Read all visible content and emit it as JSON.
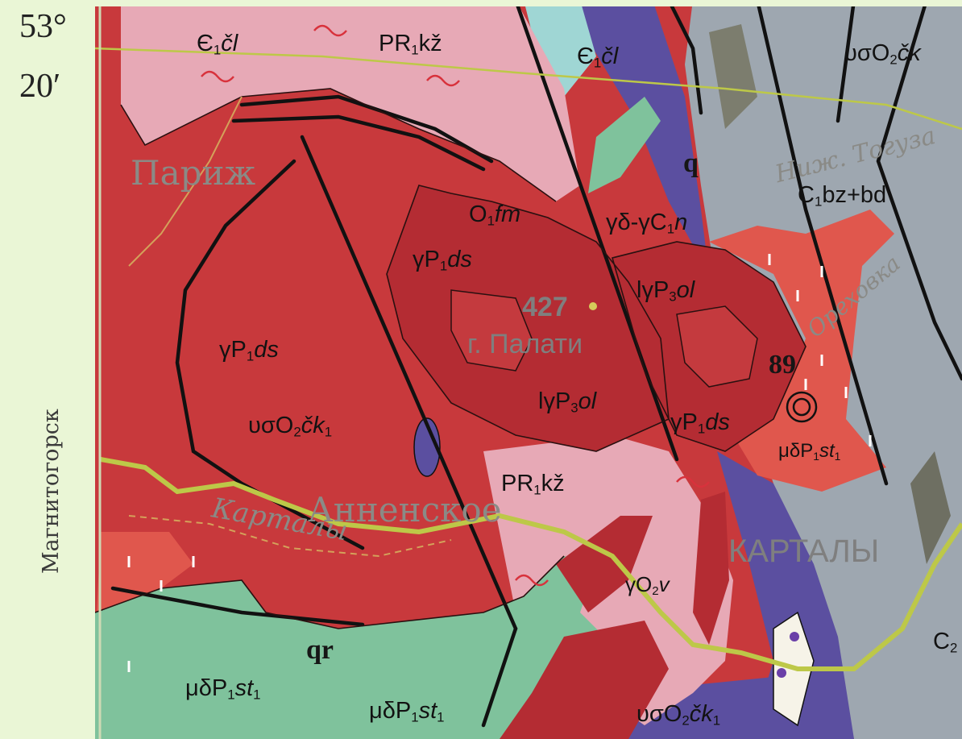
{
  "margin": {
    "lat_deg": "53°",
    "lat_min": "20′",
    "city_direction": "Магнитогорск"
  },
  "places": {
    "parizh": "Париж",
    "annenskoe": "Анненское",
    "kartaly_river": "Карталы",
    "kartaly_town": "КАРТАЛЫ",
    "nizh_toguzak": "Ниж. Тогуза",
    "orekhovka": "Ореховка",
    "mountain_elev": "427",
    "mountain_name": "г. Палати"
  },
  "labels": {
    "c1cl_a": {
      "main": "Є",
      "sub1": "1",
      "rest": "čl"
    },
    "c1cl_b": {
      "main": "Є",
      "sub1": "1",
      "rest": "čl"
    },
    "pr1kz_top": {
      "main": "PR",
      "sub1": "1",
      "rest": "kž"
    },
    "pr1kz_mid": {
      "main": "PR",
      "sub1": "1",
      "rest": "kž"
    },
    "vso2ck_top": {
      "main": "υσO",
      "sub1": "2",
      "rest": "čk"
    },
    "vso2ck1_left": {
      "main": "υσO",
      "sub1": "2",
      "rest": "čk",
      "sub2": "1"
    },
    "vso2ck1_bottom": {
      "main": "υσO",
      "sub1": "2",
      "rest": "čk",
      "sub2": "1"
    },
    "o1fm": {
      "main": "O",
      "sub1": "1",
      "rest": "fm"
    },
    "gd_gc1n": {
      "main": "γδ-γC",
      "sub1": "1",
      "rest": "n"
    },
    "c1bz_bd": {
      "main": "C",
      "sub1": "1",
      "rest": "bz+bd"
    },
    "gp1ds_center": {
      "main": "γP",
      "sub1": "1",
      "rest": "ds"
    },
    "gp1ds_left": {
      "main": "γP",
      "sub1": "1",
      "rest": "ds"
    },
    "gp1ds_right": {
      "main": "γP",
      "sub1": "1",
      "rest": "ds"
    },
    "lgp3ol_center": {
      "main": "lγP",
      "sub1": "3",
      "rest": "ol"
    },
    "lgp3ol_right": {
      "main": "lγP",
      "sub1": "3",
      "rest": "ol"
    },
    "mdp1st1_right": {
      "main": "μδP",
      "sub1": "1",
      "rest": "st",
      "sub2": "1"
    },
    "mdp1st1_left": {
      "main": "μδP",
      "sub1": "1",
      "rest": "st",
      "sub2": "1"
    },
    "mdp1st1_bottom": {
      "main": "μδP",
      "sub1": "1",
      "rest": "st",
      "sub2": "1"
    },
    "go2v": {
      "main": "γO",
      "sub1": "2",
      "rest": "v"
    },
    "c2_edge": {
      "main": "C",
      "sub1": "2",
      "rest": ""
    },
    "q": "q",
    "qr": "qr",
    "point_89": "89"
  },
  "colors": {
    "granite_red": "#c8393c",
    "dark_red": "#b42c33",
    "pink": "#e7a9b6",
    "salmon": "#e0574d",
    "green": "#7fc29c",
    "purple": "#5b4fa0",
    "gray": "#9ea7b0",
    "cyan": "#9fd6d4",
    "road": "#bdc848",
    "fault": "#111111"
  }
}
